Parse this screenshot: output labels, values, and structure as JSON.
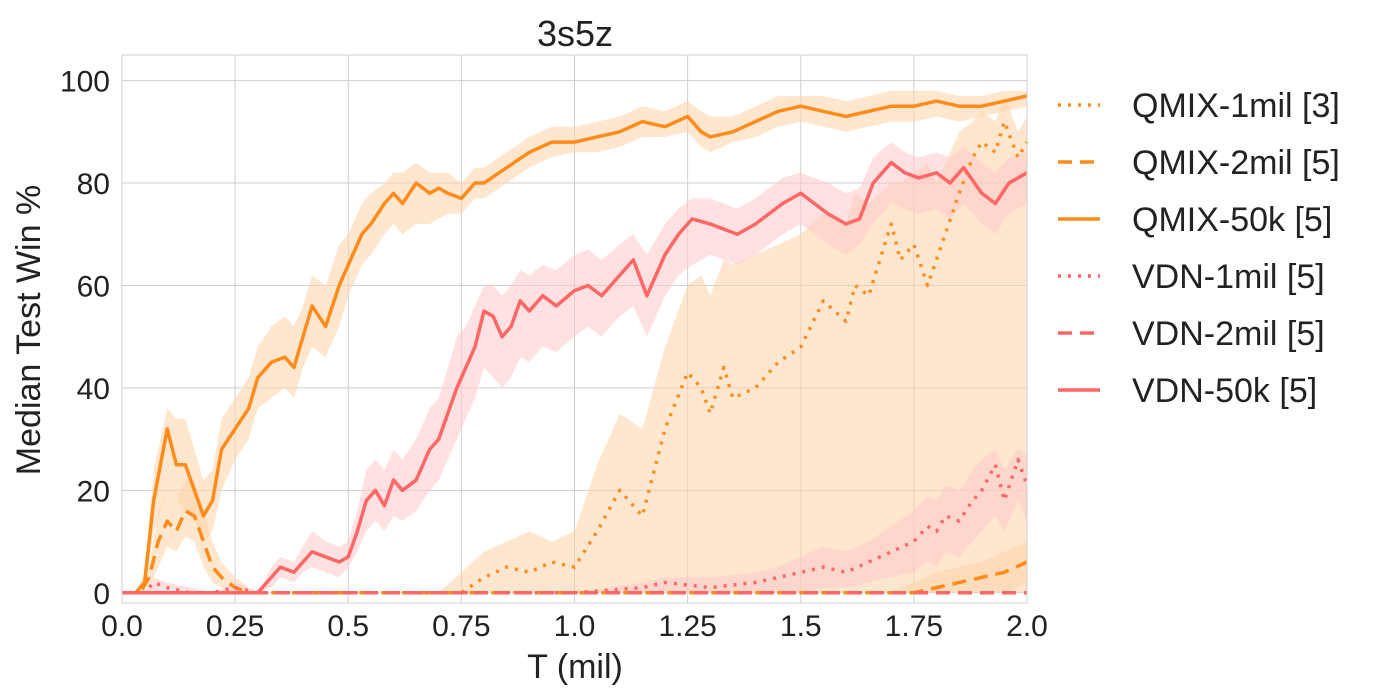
{
  "chart_data": {
    "type": "line",
    "title": "3s5z",
    "xlabel": "T (mil)",
    "ylabel": "Median Test Win %",
    "xlim": [
      0,
      2.0
    ],
    "ylim": [
      -2,
      105
    ],
    "xticks": [
      0.0,
      0.25,
      0.5,
      0.75,
      1.0,
      1.25,
      1.5,
      1.75,
      2.0
    ],
    "xtick_labels": [
      "0.0",
      "0.25",
      "0.5",
      "0.75",
      "1.0",
      "1.25",
      "1.5",
      "1.75",
      "2.0"
    ],
    "yticks": [
      0,
      20,
      40,
      60,
      80,
      100
    ],
    "ytick_labels": [
      "0",
      "20",
      "40",
      "60",
      "80",
      "100"
    ],
    "grid": true,
    "legend_position": "outside-right",
    "colors": {
      "qmix": "#ff8c1a",
      "vdn": "#ff6666",
      "qmix_band": "#ffd3a8",
      "vdn_band": "#ffc8c8"
    },
    "series": [
      {
        "name": "QMIX-1mil [3]",
        "color": "#ff8c1a",
        "dash": "dotted",
        "band_color": "#ffd3a8",
        "x": [
          0,
          0.05,
          0.08,
          0.12,
          0.15,
          0.2,
          0.25,
          0.3,
          0.4,
          0.5,
          0.6,
          0.7,
          0.75,
          0.8,
          0.85,
          0.9,
          0.95,
          1.0,
          1.05,
          1.1,
          1.15,
          1.2,
          1.25,
          1.28,
          1.3,
          1.33,
          1.35,
          1.4,
          1.45,
          1.5,
          1.55,
          1.6,
          1.62,
          1.65,
          1.7,
          1.72,
          1.75,
          1.78,
          1.8,
          1.85,
          1.88,
          1.9,
          1.93,
          1.95,
          1.98,
          2.0
        ],
        "y": [
          0,
          0,
          0,
          0,
          0,
          0,
          0,
          0,
          0,
          0,
          0,
          0,
          0,
          3,
          5,
          4,
          6,
          5,
          12,
          20,
          15,
          32,
          43,
          40,
          35,
          44,
          38,
          40,
          45,
          48,
          57,
          53,
          60,
          58,
          72,
          65,
          68,
          60,
          65,
          78,
          85,
          88,
          86,
          92,
          85,
          88
        ],
        "band_lo": [
          0,
          0,
          0,
          0,
          0,
          0,
          0,
          0,
          0,
          0,
          0,
          0,
          0,
          0,
          0,
          0,
          0,
          0,
          0,
          0,
          0,
          0,
          0,
          0,
          0,
          0,
          0,
          0,
          0,
          0,
          0,
          0,
          0,
          0,
          0,
          0,
          0,
          0,
          0,
          0,
          0,
          0,
          0,
          0,
          0,
          0
        ],
        "band_hi": [
          0,
          0,
          0,
          0,
          0,
          0,
          0,
          0,
          0,
          0,
          0,
          0,
          4,
          8,
          10,
          12,
          10,
          12,
          25,
          35,
          32,
          48,
          60,
          62,
          58,
          65,
          64,
          66,
          68,
          70,
          74,
          72,
          78,
          76,
          80,
          80,
          82,
          84,
          80,
          90,
          92,
          94,
          92,
          97,
          90,
          93
        ]
      },
      {
        "name": "QMIX-2mil [5]",
        "color": "#ff8c1a",
        "dash": "dashed",
        "band_color": "#ffd3a8",
        "x": [
          0,
          0.04,
          0.06,
          0.08,
          0.1,
          0.12,
          0.14,
          0.16,
          0.18,
          0.2,
          0.22,
          0.25,
          0.28,
          0.3,
          0.35,
          1.0,
          1.5,
          1.65,
          1.7,
          1.75,
          1.8,
          1.85,
          1.9,
          1.95,
          2.0
        ],
        "y": [
          0,
          0,
          3,
          10,
          14,
          12,
          16,
          15,
          10,
          5,
          3,
          1,
          0,
          0,
          0,
          0,
          0,
          0,
          0,
          0,
          1,
          2,
          3,
          4,
          6
        ],
        "band_lo": [
          0,
          0,
          1,
          5,
          9,
          8,
          11,
          10,
          5,
          2,
          1,
          0,
          0,
          0,
          0,
          0,
          0,
          0,
          0,
          0,
          0,
          0,
          0,
          0,
          2
        ],
        "band_hi": [
          0,
          0,
          5,
          16,
          20,
          18,
          22,
          22,
          16,
          10,
          6,
          3,
          1,
          0,
          0,
          0,
          0,
          0,
          0,
          2,
          4,
          5,
          6,
          8,
          10
        ]
      },
      {
        "name": "QMIX-50k [5]",
        "color": "#ff8c1a",
        "dash": "solid",
        "band_color": "#ffd3a8",
        "x": [
          0,
          0.03,
          0.05,
          0.07,
          0.1,
          0.12,
          0.14,
          0.16,
          0.18,
          0.2,
          0.22,
          0.25,
          0.28,
          0.3,
          0.33,
          0.36,
          0.38,
          0.4,
          0.42,
          0.45,
          0.48,
          0.5,
          0.53,
          0.55,
          0.58,
          0.6,
          0.62,
          0.65,
          0.68,
          0.7,
          0.72,
          0.75,
          0.78,
          0.8,
          0.85,
          0.9,
          0.95,
          1.0,
          1.05,
          1.1,
          1.15,
          1.2,
          1.25,
          1.28,
          1.3,
          1.35,
          1.4,
          1.45,
          1.5,
          1.55,
          1.6,
          1.65,
          1.7,
          1.75,
          1.8,
          1.85,
          1.9,
          1.95,
          2.0
        ],
        "y": [
          0,
          0,
          2,
          18,
          32,
          25,
          25,
          20,
          15,
          18,
          28,
          32,
          36,
          42,
          45,
          46,
          44,
          50,
          56,
          52,
          60,
          64,
          70,
          72,
          76,
          78,
          76,
          80,
          78,
          79,
          78,
          77,
          80,
          80,
          83,
          86,
          88,
          88,
          89,
          90,
          92,
          91,
          93,
          90,
          89,
          90,
          92,
          94,
          95,
          94,
          93,
          94,
          95,
          95,
          96,
          95,
          95,
          96,
          97
        ],
        "band_lo": [
          0,
          0,
          0,
          12,
          20,
          18,
          16,
          14,
          10,
          12,
          20,
          26,
          30,
          36,
          38,
          40,
          38,
          44,
          48,
          46,
          52,
          58,
          64,
          66,
          70,
          72,
          70,
          72,
          72,
          73,
          74,
          74,
          77,
          77,
          80,
          83,
          85,
          86,
          86,
          87,
          89,
          89,
          90,
          87,
          86,
          88,
          89,
          91,
          92,
          91,
          90,
          91,
          92,
          92,
          93,
          92,
          93,
          94,
          95
        ],
        "band_hi": [
          0,
          0,
          4,
          24,
          36,
          34,
          34,
          28,
          22,
          24,
          34,
          38,
          42,
          48,
          52,
          54,
          52,
          56,
          62,
          60,
          68,
          70,
          76,
          78,
          80,
          82,
          82,
          84,
          82,
          82,
          82,
          80,
          83,
          83,
          86,
          89,
          91,
          91,
          92,
          93,
          95,
          94,
          96,
          94,
          93,
          93,
          95,
          97,
          97,
          97,
          96,
          97,
          98,
          98,
          98,
          97,
          97,
          98,
          98
        ]
      },
      {
        "name": "VDN-1mil [5]",
        "color": "#ff6666",
        "dash": "dotted",
        "band_color": "#ffc8c8",
        "x": [
          0,
          0.05,
          0.07,
          0.1,
          0.15,
          0.2,
          0.25,
          0.3,
          0.5,
          1.0,
          1.15,
          1.2,
          1.3,
          1.4,
          1.45,
          1.5,
          1.55,
          1.6,
          1.65,
          1.7,
          1.75,
          1.78,
          1.8,
          1.82,
          1.85,
          1.88,
          1.9,
          1.93,
          1.95,
          1.98,
          2.0
        ],
        "y": [
          0,
          0,
          2,
          1,
          0,
          0,
          1,
          0,
          0,
          0,
          1,
          2,
          1,
          2,
          3,
          4,
          5,
          4,
          6,
          8,
          10,
          13,
          12,
          15,
          14,
          18,
          20,
          25,
          18,
          26,
          21
        ],
        "band_lo": [
          0,
          0,
          0,
          0,
          0,
          0,
          0,
          0,
          0,
          0,
          0,
          0,
          0,
          0,
          0,
          0,
          1,
          1,
          2,
          3,
          4,
          6,
          5,
          8,
          7,
          10,
          12,
          15,
          12,
          18,
          14
        ],
        "band_hi": [
          0,
          0,
          3,
          2,
          1,
          0,
          2,
          0,
          0,
          0,
          2,
          3,
          3,
          4,
          5,
          7,
          9,
          8,
          10,
          13,
          16,
          19,
          18,
          21,
          20,
          24,
          26,
          28,
          24,
          28,
          27
        ]
      },
      {
        "name": "VDN-2mil [5]",
        "color": "#ff6666",
        "dash": "dashed",
        "band_color": "#ffc8c8",
        "x": [
          0,
          0.5,
          1.0,
          1.5,
          2.0
        ],
        "y": [
          0,
          0,
          0,
          0,
          0
        ],
        "band_lo": [
          0,
          0,
          0,
          0,
          0
        ],
        "band_hi": [
          0,
          0,
          0,
          0,
          0
        ]
      },
      {
        "name": "VDN-50k [5]",
        "color": "#ff6666",
        "dash": "solid",
        "band_color": "#ffc8c8",
        "x": [
          0,
          0.3,
          0.33,
          0.35,
          0.38,
          0.4,
          0.42,
          0.45,
          0.48,
          0.5,
          0.52,
          0.54,
          0.56,
          0.58,
          0.6,
          0.62,
          0.65,
          0.68,
          0.7,
          0.72,
          0.74,
          0.76,
          0.78,
          0.8,
          0.82,
          0.84,
          0.86,
          0.88,
          0.9,
          0.93,
          0.96,
          1.0,
          1.03,
          1.06,
          1.1,
          1.13,
          1.16,
          1.2,
          1.23,
          1.26,
          1.3,
          1.33,
          1.36,
          1.4,
          1.43,
          1.46,
          1.5,
          1.53,
          1.56,
          1.6,
          1.63,
          1.66,
          1.7,
          1.73,
          1.76,
          1.8,
          1.83,
          1.86,
          1.9,
          1.93,
          1.96,
          2.0
        ],
        "y": [
          0,
          0,
          3,
          5,
          4,
          6,
          8,
          7,
          6,
          7,
          12,
          18,
          20,
          17,
          22,
          20,
          22,
          28,
          30,
          35,
          40,
          44,
          48,
          55,
          54,
          50,
          52,
          57,
          55,
          58,
          56,
          59,
          60,
          58,
          62,
          65,
          58,
          66,
          70,
          73,
          72,
          71,
          70,
          72,
          74,
          76,
          78,
          76,
          74,
          72,
          73,
          80,
          84,
          82,
          81,
          82,
          80,
          83,
          78,
          76,
          80,
          82
        ],
        "band_lo": [
          0,
          0,
          1,
          3,
          2,
          4,
          5,
          4,
          3,
          5,
          8,
          12,
          14,
          12,
          15,
          14,
          16,
          20,
          22,
          26,
          30,
          34,
          38,
          44,
          42,
          40,
          42,
          46,
          45,
          48,
          47,
          50,
          52,
          50,
          54,
          56,
          50,
          58,
          62,
          64,
          66,
          65,
          64,
          66,
          68,
          70,
          72,
          70,
          68,
          66,
          68,
          72,
          76,
          75,
          74,
          75,
          73,
          76,
          72,
          70,
          74,
          76
        ],
        "band_hi": [
          0,
          0,
          5,
          7,
          6,
          9,
          12,
          10,
          9,
          10,
          16,
          24,
          26,
          24,
          28,
          26,
          30,
          36,
          38,
          44,
          50,
          52,
          56,
          60,
          60,
          58,
          60,
          63,
          62,
          64,
          63,
          66,
          67,
          65,
          68,
          70,
          66,
          72,
          75,
          77,
          77,
          76,
          75,
          77,
          79,
          81,
          82,
          81,
          80,
          78,
          79,
          85,
          88,
          86,
          85,
          86,
          85,
          87,
          84,
          82,
          85,
          86
        ]
      }
    ]
  }
}
